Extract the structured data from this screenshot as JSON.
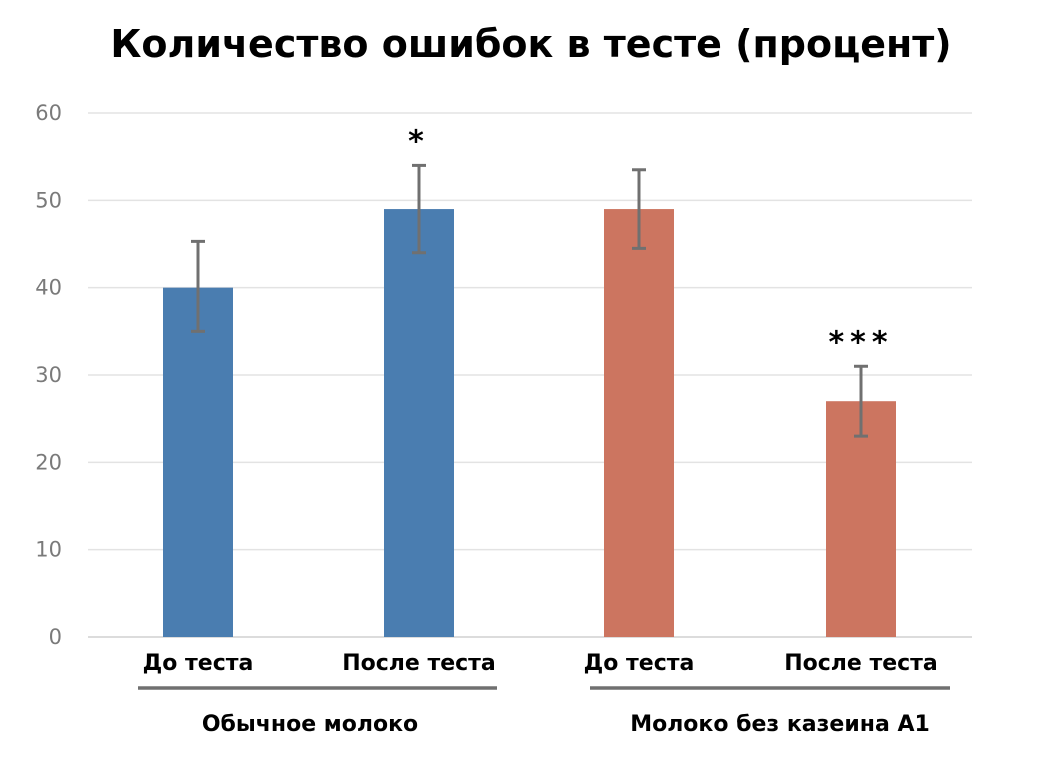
{
  "chart_data": {
    "type": "bar",
    "title": "Количество ошибок в тесте (процент)",
    "xlabel": "",
    "ylabel": "",
    "ylim": [
      0,
      60
    ],
    "yticks": [
      0,
      10,
      20,
      30,
      40,
      50,
      60
    ],
    "grid": true,
    "legend": "none",
    "categories": [
      "До теста",
      "После теста",
      "До теста",
      "После теста"
    ],
    "groups": [
      {
        "label": "Обычное молоко",
        "color": "#4a7db0",
        "bars": [
          {
            "category": "До теста",
            "value": 40,
            "error_low": 35,
            "error_high": 45.3,
            "significance": ""
          },
          {
            "category": "После теста",
            "value": 49,
            "error_low": 44,
            "error_high": 54,
            "significance": "*"
          }
        ]
      },
      {
        "label": "Молоко без казеина А1",
        "color": "#cc7560",
        "bars": [
          {
            "category": "До теста",
            "value": 49,
            "error_low": 44.5,
            "error_high": 53.5,
            "significance": ""
          },
          {
            "category": "После теста",
            "value": 27,
            "error_low": 23,
            "error_high": 31,
            "significance": "***"
          }
        ]
      }
    ]
  }
}
